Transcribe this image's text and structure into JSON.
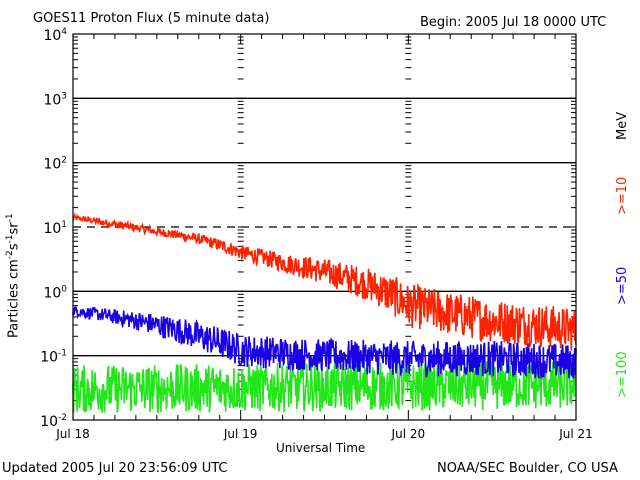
{
  "header": {
    "title": "GOES11 Proton Flux (5 minute data)",
    "begin": "Begin: 2005 Jul 18 0000 UTC"
  },
  "footer": {
    "updated": "Updated 2005 Jul 20 23:56:09 UTC",
    "source": "NOAA/SEC Boulder, CO USA"
  },
  "chart_data": {
    "type": "line",
    "title": "GOES11 Proton Flux (5 minute data)",
    "xlabel": "Universal Time",
    "ylabel": "Particles cm⁻²s⁻¹sr⁻¹",
    "yscale": "log",
    "ylim": [
      0.01,
      10000
    ],
    "xlim_days": [
      0,
      3
    ],
    "x_tick_labels": [
      "Jul 18",
      "Jul 19",
      "Jul 20",
      "Jul 21"
    ],
    "y_tick_labels": [
      {
        "base": "10",
        "exp": "-2"
      },
      {
        "base": "10",
        "exp": "-1"
      },
      {
        "base": "10",
        "exp": "0"
      },
      {
        "base": "10",
        "exp": "1"
      },
      {
        "base": "10",
        "exp": "2"
      },
      {
        "base": "10",
        "exp": "3"
      },
      {
        "base": "10",
        "exp": "4"
      }
    ],
    "energy_unit": "MeV",
    "threshold_lines": [
      {
        "value": 10,
        "style": "dashed"
      },
      {
        "value": 1,
        "style": "solid"
      },
      {
        "value": 0.1,
        "style": "solid"
      },
      {
        "value": 100,
        "style": "solid"
      },
      {
        "value": 1000,
        "style": "solid"
      }
    ],
    "series": [
      {
        "name": ">=10",
        "color": "#ff2200",
        "trend_days": [
          0,
          0.25,
          0.5,
          0.75,
          1.0,
          1.25,
          1.5,
          1.75,
          2.0,
          2.25,
          2.5,
          2.75,
          3.0
        ],
        "trend_values": [
          14,
          11,
          8.5,
          6.5,
          4.0,
          2.8,
          2.0,
          1.3,
          0.6,
          0.45,
          0.35,
          0.3,
          0.25
        ],
        "noise_factor": [
          1.1,
          1.15,
          1.15,
          1.2,
          1.3,
          1.4,
          1.6,
          1.8,
          2.2,
          2.2,
          2.2,
          2.2,
          2.2
        ]
      },
      {
        "name": ">=50",
        "color": "#1a00e6",
        "trend_days": [
          0,
          0.25,
          0.5,
          0.75,
          1.0,
          1.5,
          2.0,
          2.5,
          3.0
        ],
        "trend_values": [
          0.5,
          0.4,
          0.3,
          0.2,
          0.12,
          0.1,
          0.09,
          0.09,
          0.08
        ],
        "noise_factor": [
          1.2,
          1.3,
          1.5,
          1.7,
          1.8,
          1.8,
          1.9,
          1.9,
          1.9
        ]
      },
      {
        "name": ">=100",
        "color": "#22e61a",
        "trend_days": [
          0,
          3.0
        ],
        "trend_values": [
          0.03,
          0.035
        ],
        "noise_factor": [
          2.4,
          2.4
        ],
        "floor": 0.013
      }
    ]
  }
}
